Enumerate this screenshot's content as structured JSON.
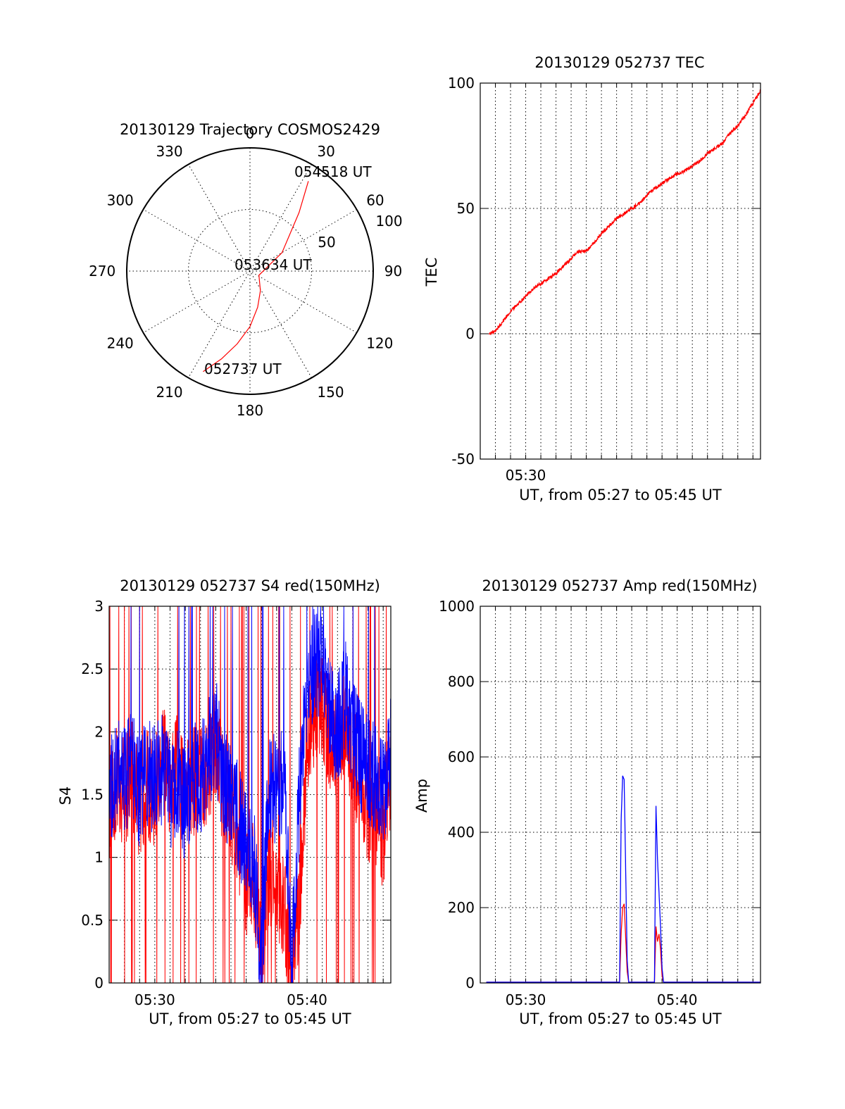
{
  "colors": {
    "red": "#ff0000",
    "blue": "#0000ff",
    "axis": "#000000"
  },
  "chart_data": [
    {
      "type": "polar",
      "title": "20130129 Trajectory COSMOS2429",
      "angle_ticks": [
        "0",
        "30",
        "60",
        "90",
        "120",
        "150",
        "180",
        "210",
        "240",
        "270",
        "300",
        "330"
      ],
      "radial_ticks": [
        "50",
        "100"
      ],
      "radial_tick_values": [
        50,
        100
      ],
      "annotations": {
        "start": "052737 UT",
        "middle": "053634 UT",
        "end": "054518 UT"
      },
      "series": [
        {
          "color": "red",
          "azimuth_deg": [
            205,
            198,
            190,
            180,
            168,
            152,
            115,
            60,
            40,
            33
          ],
          "radius": [
            90,
            75,
            60,
            45,
            30,
            18,
            8,
            30,
            62,
            87
          ]
        }
      ]
    },
    {
      "type": "line",
      "title": "20130129 052737 TEC",
      "xlabel": "UT, from 05:27 to 05:45 UT",
      "ylabel": "TEC",
      "xlim": [
        27.0,
        45.5
      ],
      "ylim": [
        -50,
        100
      ],
      "xticks": [
        {
          "v": 30,
          "label": "05:30"
        }
      ],
      "yticks": [
        {
          "v": -50,
          "label": "-50"
        },
        {
          "v": 0,
          "label": "0"
        },
        {
          "v": 50,
          "label": "50"
        },
        {
          "v": 100,
          "label": "100"
        }
      ],
      "grid_x": [
        28,
        29,
        30,
        31,
        32,
        33,
        34,
        35,
        36,
        37,
        38,
        39,
        40,
        41,
        42,
        43,
        44,
        45
      ],
      "grid_y": [
        0,
        50
      ],
      "series": [
        {
          "color": "red",
          "x": [
            27.6,
            28.0,
            28.5,
            29.0,
            29.5,
            30.0,
            30.5,
            31.0,
            31.5,
            32.0,
            32.5,
            33.0,
            33.5,
            34.0,
            34.5,
            35.0,
            35.5,
            36.0,
            36.5,
            37.0,
            37.5,
            38.0,
            38.5,
            39.0,
            39.5,
            40.0,
            40.5,
            41.0,
            41.5,
            42.0,
            42.5,
            43.0,
            43.5,
            44.0,
            44.5,
            45.0,
            45.5
          ],
          "y": [
            0,
            1,
            5,
            9,
            12,
            15,
            18,
            20,
            22,
            24,
            27,
            30,
            33,
            33,
            36,
            40,
            43,
            46,
            48,
            50,
            52,
            55,
            58,
            60,
            62,
            64,
            65,
            67,
            69,
            72,
            74,
            76,
            80,
            83,
            87,
            92,
            97
          ]
        }
      ]
    },
    {
      "type": "line",
      "title": "20130129 052737 S4 red(150MHz)",
      "xlabel": "UT, from 05:27 to 05:45 UT",
      "ylabel": "S4",
      "xlim": [
        27.0,
        45.5
      ],
      "ylim": [
        0,
        3
      ],
      "xticks": [
        {
          "v": 30,
          "label": "05:30"
        },
        {
          "v": 40,
          "label": "05:40"
        }
      ],
      "yticks": [
        {
          "v": 0,
          "label": "0"
        },
        {
          "v": 0.5,
          "label": "0.5"
        },
        {
          "v": 1,
          "label": "1"
        },
        {
          "v": 1.5,
          "label": "1.5"
        },
        {
          "v": 2,
          "label": "2"
        },
        {
          "v": 2.5,
          "label": "2.5"
        },
        {
          "v": 3,
          "label": "3"
        }
      ],
      "grid_x": [
        28,
        29,
        30,
        31,
        32,
        33,
        34,
        35,
        36,
        37,
        38,
        39,
        40,
        41,
        42,
        43,
        44,
        45
      ],
      "grid_y": [
        0.5,
        1,
        1.5,
        2,
        2.5
      ],
      "series": [
        {
          "color": "red",
          "x": [
            27.0,
            27.5,
            28.0,
            28.5,
            29.0,
            29.5,
            30.0,
            30.5,
            31.0,
            31.5,
            32.0,
            32.5,
            33.0,
            33.5,
            34.0,
            34.5,
            35.0,
            35.5,
            36.0,
            36.5,
            37.0,
            37.5,
            38.0,
            38.5,
            39.0,
            39.5,
            40.0,
            40.5,
            41.0,
            41.5,
            42.0,
            42.5,
            43.0,
            43.5,
            44.0,
            44.5,
            45.0,
            45.5
          ],
          "y": [
            1.4,
            1.6,
            1.5,
            1.7,
            1.4,
            1.6,
            1.5,
            1.8,
            1.6,
            1.7,
            1.5,
            1.6,
            1.6,
            1.7,
            1.9,
            1.5,
            1.4,
            1.1,
            0.8,
            0.9,
            0.08,
            0.9,
            0.7,
            0.6,
            0.08,
            0.7,
            1.9,
            2.2,
            2.2,
            2.0,
            1.9,
            2.1,
            1.8,
            1.6,
            1.4,
            1.3,
            1.2,
            1.7
          ]
        },
        {
          "color": "blue",
          "x": [
            27.0,
            27.5,
            28.0,
            28.5,
            29.0,
            29.5,
            30.0,
            30.5,
            31.0,
            31.5,
            32.0,
            32.5,
            33.0,
            33.5,
            34.0,
            34.5,
            35.0,
            35.5,
            36.0,
            36.5,
            37.0,
            37.5,
            38.0,
            38.5,
            39.0,
            39.5,
            40.0,
            40.5,
            41.0,
            41.5,
            42.0,
            42.5,
            43.0,
            43.5,
            44.0,
            44.5,
            45.0,
            45.5
          ],
          "y": [
            1.5,
            1.7,
            1.6,
            1.8,
            1.5,
            1.7,
            1.6,
            1.7,
            1.5,
            1.6,
            1.4,
            1.7,
            1.6,
            1.8,
            2.0,
            1.6,
            1.5,
            1.3,
            1.1,
            1.0,
            0.1,
            1.6,
            1.5,
            1.6,
            0.1,
            1.5,
            2.3,
            2.6,
            2.5,
            2.2,
            2.0,
            2.3,
            2.0,
            1.8,
            1.7,
            1.6,
            1.5,
            1.9
          ]
        }
      ]
    },
    {
      "type": "line",
      "title": "20130129 052737 Amp red(150MHz)",
      "xlabel": "UT, from 05:27 to 05:45 UT",
      "ylabel": "Amp",
      "xlim": [
        27.0,
        45.5
      ],
      "ylim": [
        0,
        1000
      ],
      "xticks": [
        {
          "v": 30,
          "label": "05:30"
        },
        {
          "v": 40,
          "label": "05:40"
        }
      ],
      "yticks": [
        {
          "v": 0,
          "label": "0"
        },
        {
          "v": 200,
          "label": "200"
        },
        {
          "v": 400,
          "label": "400"
        },
        {
          "v": 600,
          "label": "600"
        },
        {
          "v": 800,
          "label": "800"
        },
        {
          "v": 1000,
          "label": "1000"
        }
      ],
      "grid_x": [
        28,
        29,
        30,
        31,
        32,
        33,
        34,
        35,
        36,
        37,
        38,
        39,
        40,
        41,
        42,
        43,
        44,
        45
      ],
      "grid_y": [
        200,
        400,
        600,
        800
      ],
      "series": [
        {
          "color": "red",
          "x": [
            27.4,
            36.2,
            36.3,
            36.4,
            36.5,
            36.6,
            36.7,
            36.8,
            38.5,
            38.6,
            38.7,
            38.8,
            38.9,
            39.0,
            39.1,
            45.5
          ],
          "y": [
            2,
            2,
            130,
            200,
            210,
            120,
            30,
            2,
            2,
            150,
            110,
            130,
            90,
            20,
            2,
            2
          ]
        },
        {
          "color": "blue",
          "x": [
            27.4,
            36.2,
            36.3,
            36.4,
            36.5,
            36.6,
            36.7,
            36.8,
            38.5,
            38.6,
            38.7,
            38.8,
            38.9,
            39.0,
            39.1,
            45.5
          ],
          "y": [
            2,
            2,
            430,
            550,
            540,
            300,
            60,
            2,
            2,
            470,
            330,
            240,
            150,
            40,
            2,
            2
          ]
        }
      ]
    }
  ]
}
